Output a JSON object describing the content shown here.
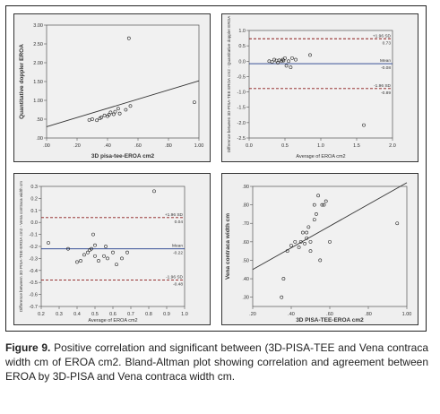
{
  "caption": {
    "label": "Figure 9.",
    "text": " Positive correlation and significant between (3D-PISA-TEE and Vena contraca width cm of EROA cm2. Bland-Altman plot showing correlation and agreement between EROA by 3D-PISA and Vena contraca width cm."
  },
  "chart_data": [
    {
      "type": "scatter",
      "position": "top-left",
      "xlabel": "3D pisa-tee-EROA cm2",
      "ylabel": "Quantitative doppler EROA",
      "xlim": [
        0.0,
        1.0
      ],
      "ylim": [
        0.0,
        3.0
      ],
      "xticks": [
        ".00",
        ".20",
        ".40",
        ".60",
        ".80",
        "1.00"
      ],
      "yticks": [
        ".00",
        ".50",
        "1.00",
        "1.50",
        "2.00",
        "2.50",
        "3.00"
      ],
      "x": [
        0.28,
        0.3,
        0.33,
        0.35,
        0.36,
        0.38,
        0.4,
        0.41,
        0.42,
        0.44,
        0.45,
        0.47,
        0.48,
        0.52,
        0.55,
        0.97,
        0.54
      ],
      "y": [
        0.48,
        0.5,
        0.47,
        0.52,
        0.55,
        0.6,
        0.58,
        0.62,
        0.68,
        0.63,
        0.7,
        0.78,
        0.65,
        0.75,
        0.85,
        0.95,
        2.65
      ],
      "fit_line": {
        "x": [
          0.0,
          1.0
        ],
        "y": [
          0.3,
          1.52
        ]
      }
    },
    {
      "type": "scatter",
      "position": "top-right",
      "subtype": "bland-altman",
      "xlabel": "Average of EROA cm2",
      "ylabel": "Difference between 3D-PISA-TEE EROA cm2 - Quantitative doppler EROA",
      "xlim": [
        0.0,
        2.0
      ],
      "ylim": [
        -2.5,
        1.0
      ],
      "xticks": [
        "0.0",
        "0.5",
        "1.0",
        "1.5",
        "2.0"
      ],
      "yticks": [
        "1.0",
        "0.5",
        "0.0",
        "-0.5",
        "-1.0",
        "-1.5",
        "-2.0",
        "-2.5"
      ],
      "x": [
        0.28,
        0.32,
        0.35,
        0.38,
        0.4,
        0.42,
        0.45,
        0.47,
        0.48,
        0.52,
        0.5,
        0.55,
        0.58,
        0.65,
        0.6,
        0.85,
        1.6
      ],
      "y": [
        0.0,
        -0.02,
        0.05,
        0.02,
        -0.05,
        0.03,
        0.0,
        0.05,
        0.02,
        -0.15,
        0.1,
        0.0,
        -0.2,
        0.05,
        0.1,
        0.2,
        -2.08
      ],
      "lines": [
        {
          "name": "+1.96 SD",
          "value": 0.73,
          "label": "0.73",
          "style": "dashed"
        },
        {
          "name": "Mean",
          "value": -0.08,
          "label": "-0.08",
          "style": "solid"
        },
        {
          "name": "-1.96 SD",
          "value": -0.89,
          "label": "-0.89",
          "style": "dashed"
        }
      ]
    },
    {
      "type": "scatter",
      "position": "bottom-left",
      "subtype": "bland-altman",
      "xlabel": "Average of EROA cm2",
      "ylabel": "Difference between 3D PISA-TEE-EROA cm2 - Vena contraca width cm",
      "xlim": [
        0.2,
        1.0
      ],
      "ylim": [
        -0.7,
        0.3
      ],
      "xticks": [
        "0.2",
        "0.3",
        "0.4",
        "0.5",
        "0.6",
        "0.7",
        "0.8",
        "0.9",
        "1.0"
      ],
      "yticks": [
        "0.3",
        "0.2",
        "0.1",
        "0.0",
        "-0.1",
        "-0.2",
        "-0.3",
        "-0.4",
        "-0.5",
        "-0.6",
        "-0.7"
      ],
      "x": [
        0.24,
        0.35,
        0.4,
        0.42,
        0.44,
        0.46,
        0.48,
        0.5,
        0.52,
        0.55,
        0.57,
        0.6,
        0.62,
        0.65,
        0.68,
        0.49,
        0.47,
        0.5,
        0.56,
        0.83
      ],
      "y": [
        -0.17,
        -0.22,
        -0.33,
        -0.32,
        -0.27,
        -0.25,
        -0.22,
        -0.28,
        -0.32,
        -0.28,
        -0.3,
        -0.25,
        -0.35,
        -0.3,
        -0.25,
        -0.1,
        -0.23,
        -0.19,
        -0.2,
        0.26
      ],
      "lines": [
        {
          "name": "+1.96 SD",
          "value": 0.04,
          "label": "0.04",
          "style": "dashed"
        },
        {
          "name": "Mean",
          "value": -0.22,
          "label": "-0.22",
          "style": "solid"
        },
        {
          "name": "-1.96 SD",
          "value": -0.48,
          "label": "-0.48",
          "style": "dashed"
        }
      ]
    },
    {
      "type": "scatter",
      "position": "bottom-right",
      "xlabel": "3D PISA-TEE-EROA cm2",
      "ylabel": "Vena contraca width cm",
      "xlim": [
        0.2,
        1.0
      ],
      "ylim": [
        0.25,
        0.9
      ],
      "xticks": [
        ".20",
        ".40",
        ".60",
        ".80",
        "1.00"
      ],
      "yticks": [
        ".30",
        ".40",
        ".50",
        ".60",
        ".70",
        ".80",
        ".90"
      ],
      "x": [
        0.35,
        0.38,
        0.4,
        0.42,
        0.44,
        0.45,
        0.46,
        0.47,
        0.48,
        0.49,
        0.5,
        0.52,
        0.53,
        0.55,
        0.56,
        0.58,
        0.6,
        0.48,
        0.54,
        0.95,
        0.36,
        0.52,
        0.57,
        0.5
      ],
      "y": [
        0.3,
        0.55,
        0.58,
        0.6,
        0.57,
        0.6,
        0.65,
        0.59,
        0.62,
        0.68,
        0.6,
        0.72,
        0.75,
        0.5,
        0.8,
        0.82,
        0.6,
        0.65,
        0.85,
        0.7,
        0.4,
        0.8,
        0.8,
        0.55
      ],
      "fit_line": {
        "x": [
          0.2,
          1.0
        ],
        "y": [
          0.45,
          0.92
        ]
      }
    }
  ]
}
